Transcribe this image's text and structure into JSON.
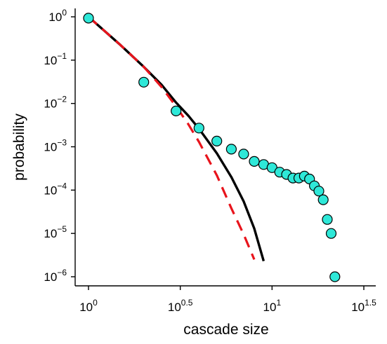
{
  "chart_data": {
    "type": "scatter",
    "xlabel": "cascade size",
    "ylabel": "probability",
    "x_scale": "log",
    "y_scale": "log",
    "xlim": [
      0.95,
      35.5
    ],
    "ylim": [
      5e-07,
      1.6
    ],
    "x_ticks": [
      {
        "value": 1,
        "base": "10",
        "exp": "0"
      },
      {
        "value": 3.1623,
        "base": "10",
        "exp": "0.5"
      },
      {
        "value": 10,
        "base": "10",
        "exp": "1"
      },
      {
        "value": 31.623,
        "base": "10",
        "exp": "1.5"
      }
    ],
    "y_ticks": [
      {
        "value": 1,
        "base": "10",
        "exp": "0"
      },
      {
        "value": 0.1,
        "base": "10",
        "exp": "−1"
      },
      {
        "value": 0.01,
        "base": "10",
        "exp": "−2"
      },
      {
        "value": 0.001,
        "base": "10",
        "exp": "−3"
      },
      {
        "value": 0.0001,
        "base": "10",
        "exp": "−4"
      },
      {
        "value": 1e-05,
        "base": "10",
        "exp": "−5"
      },
      {
        "value": 1e-06,
        "base": "10",
        "exp": "−6"
      }
    ],
    "grid": false,
    "legend": "none",
    "colors": {
      "points": "#2ee8d8",
      "point_edge": "#000000",
      "solid_line": "#000000",
      "dashed_line": "#e8141c"
    },
    "series": [
      {
        "kind": "points",
        "x": [
          1,
          2,
          3,
          4,
          5,
          6,
          7,
          8,
          9,
          10,
          11,
          12,
          13,
          14,
          15,
          16,
          17,
          18,
          19,
          20,
          21,
          22
        ],
        "y": [
          0.93,
          0.031,
          0.0067,
          0.0027,
          0.00135,
          0.00088,
          0.00068,
          0.00046,
          0.00039,
          0.00033,
          0.00026,
          0.00023,
          0.00019,
          0.00019,
          0.00021,
          0.00018,
          0.000125,
          9.5e-05,
          6e-05,
          2.1e-05,
          1e-05,
          1e-06
        ]
      },
      {
        "kind": "line",
        "style": "solid",
        "x": [
          1,
          1.5,
          2,
          2.5,
          3,
          3.5,
          4,
          5,
          6,
          7,
          8,
          9
        ],
        "y": [
          1,
          0.22,
          0.07,
          0.027,
          0.0105,
          0.0052,
          0.0026,
          0.00071,
          0.0002,
          5.5e-05,
          1.3e-05,
          2.3e-06
        ]
      },
      {
        "kind": "line",
        "style": "dashed",
        "x": [
          1,
          1.5,
          2,
          2.5,
          3,
          3.5,
          4,
          5,
          6,
          7,
          8
        ],
        "y": [
          1,
          0.22,
          0.07,
          0.024,
          0.0085,
          0.0033,
          0.0013,
          0.00022,
          3.8e-05,
          9.5e-06,
          2.5e-06
        ]
      }
    ]
  }
}
